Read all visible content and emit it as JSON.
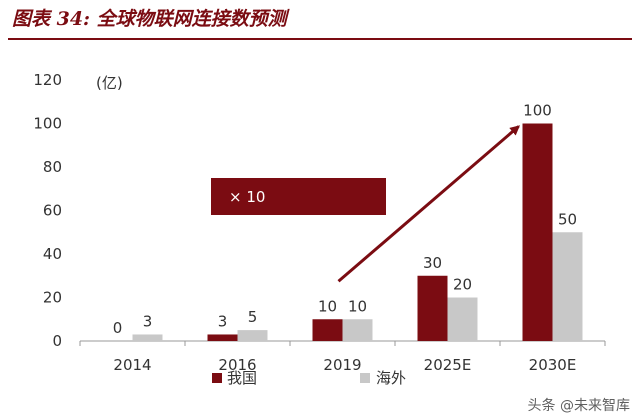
{
  "header": {
    "title": "图表 34: 全球物联网连接数预测"
  },
  "chart_data": {
    "type": "bar",
    "title": "图表 34: 全球物联网连接数预测",
    "unit_label": "(亿)",
    "categories": [
      "2014",
      "2016",
      "2019",
      "2025E",
      "2030E"
    ],
    "series": [
      {
        "name": "我国",
        "values": [
          0,
          3,
          10,
          30,
          100
        ],
        "color": "#7b0c12"
      },
      {
        "name": "海外",
        "values": [
          3,
          5,
          10,
          20,
          50
        ],
        "color": "#c8c8c8"
      }
    ],
    "yticks": [
      0,
      20,
      40,
      60,
      80,
      100,
      120
    ],
    "ylim": [
      0,
      120
    ],
    "grid": false,
    "legend_position": "bottom-center",
    "annotation": {
      "text": "× 10",
      "arrow_from": "2019",
      "arrow_to": "2030E"
    }
  },
  "watermark": "头条 @未来智库"
}
